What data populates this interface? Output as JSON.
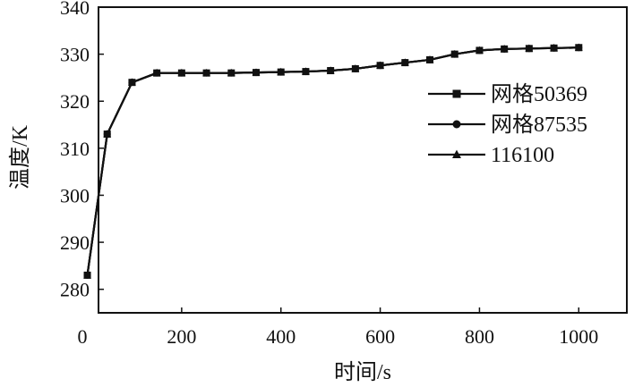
{
  "chart_data": {
    "type": "line",
    "xlabel": "时间/s",
    "ylabel": "温度/K",
    "xlim": [
      0,
      1100
    ],
    "ylim": [
      275,
      340
    ],
    "xticks": [
      0,
      200,
      400,
      600,
      800,
      1000
    ],
    "yticks": [
      280,
      290,
      300,
      310,
      320,
      330,
      340
    ],
    "grid": false,
    "legend_position": "right",
    "x": [
      10,
      50,
      100,
      150,
      200,
      250,
      300,
      350,
      400,
      450,
      500,
      550,
      600,
      650,
      700,
      750,
      800,
      850,
      900,
      950,
      1000
    ],
    "series": [
      {
        "name": "网格50369",
        "marker": "square",
        "values": [
          283,
          313,
          324,
          326,
          326,
          326,
          326,
          326.1,
          326.2,
          326.3,
          326.5,
          326.9,
          327.6,
          328.2,
          328.8,
          330,
          330.8,
          331.1,
          331.2,
          331.3,
          331.4
        ]
      },
      {
        "name": "网格87535",
        "marker": "circle",
        "values": [
          283,
          313,
          324,
          326,
          326,
          326,
          326,
          326.1,
          326.2,
          326.3,
          326.5,
          326.9,
          327.6,
          328.2,
          328.8,
          330,
          330.8,
          331.1,
          331.2,
          331.3,
          331.4
        ]
      },
      {
        "name": "116100",
        "marker": "triangle",
        "values": [
          283,
          313,
          324,
          326,
          326,
          326,
          326,
          326.1,
          326.2,
          326.3,
          326.5,
          326.9,
          327.6,
          328.2,
          328.8,
          330,
          330.8,
          331.1,
          331.2,
          331.3,
          331.4
        ]
      }
    ]
  }
}
